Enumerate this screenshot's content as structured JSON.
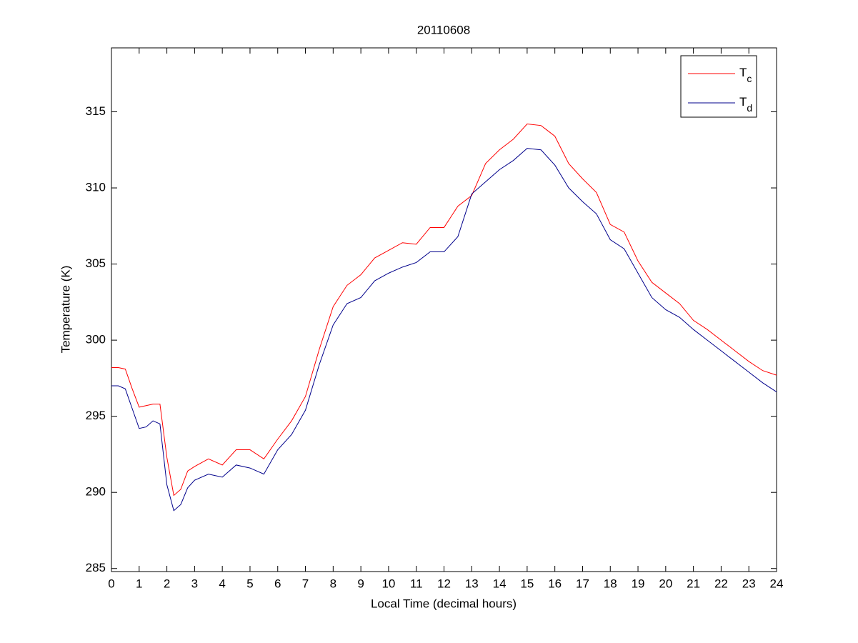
{
  "chart_data": {
    "type": "line",
    "title": "20110608",
    "x_label": "Local Time (decimal hours)",
    "y_label": "Temperature (K)",
    "x": [
      0,
      0.25,
      0.5,
      0.75,
      1,
      1.25,
      1.5,
      1.75,
      2,
      2.25,
      2.5,
      2.75,
      3,
      3.5,
      4,
      4.5,
      5,
      5.5,
      6,
      6.5,
      7,
      7.5,
      8,
      8.5,
      9,
      9.5,
      10,
      10.5,
      11,
      11.5,
      12,
      12.5,
      13,
      13.5,
      14,
      14.5,
      15,
      15.5,
      16,
      16.5,
      17,
      17.5,
      18,
      18.5,
      19,
      19.5,
      20,
      20.5,
      21,
      21.5,
      22,
      22.5,
      23,
      23.5,
      24
    ],
    "series": [
      {
        "name": "Tc",
        "color": "#ff0000",
        "values": [
          298.2,
          298.2,
          298.1,
          296.8,
          295.6,
          295.7,
          295.8,
          295.8,
          292.3,
          289.8,
          290.2,
          291.4,
          291.7,
          292.2,
          291.8,
          292.8,
          292.8,
          292.2,
          293.5,
          294.7,
          296.3,
          299.4,
          302.2,
          303.6,
          304.3,
          305.4,
          305.9,
          306.4,
          306.3,
          307.4,
          307.4,
          308.8,
          309.5,
          311.6,
          312.5,
          313.2,
          314.2,
          314.1,
          313.4,
          311.6,
          310.6,
          309.7,
          307.6,
          307.1,
          305.2,
          303.8,
          303.1,
          302.4,
          301.3,
          300.7,
          300.0,
          299.3,
          298.6,
          298.0,
          297.7
        ]
      },
      {
        "name": "Td",
        "color": "#00008b",
        "values": [
          297.0,
          297.0,
          296.8,
          295.5,
          294.2,
          294.3,
          294.7,
          294.5,
          290.5,
          288.8,
          289.2,
          290.3,
          290.8,
          291.2,
          291.0,
          291.8,
          291.6,
          291.2,
          292.8,
          293.8,
          295.4,
          298.4,
          301.0,
          302.4,
          302.8,
          303.9,
          304.4,
          304.8,
          305.1,
          305.8,
          305.8,
          306.8,
          309.6,
          310.4,
          311.2,
          311.8,
          312.6,
          312.5,
          311.5,
          310.0,
          309.1,
          308.3,
          306.6,
          306.0,
          304.4,
          302.8,
          302.0,
          301.5,
          300.7,
          300.0,
          299.3,
          298.6,
          297.9,
          297.2,
          296.6
        ]
      }
    ],
    "xlim": [
      0,
      24
    ],
    "xticks": [
      0,
      1,
      2,
      3,
      4,
      5,
      6,
      7,
      8,
      9,
      10,
      11,
      12,
      13,
      14,
      15,
      16,
      17,
      18,
      19,
      20,
      21,
      22,
      23,
      24
    ],
    "ylim": [
      284.8,
      319.2
    ],
    "yticks": [
      285,
      290,
      295,
      300,
      305,
      310,
      315
    ],
    "legend": "upper right"
  }
}
